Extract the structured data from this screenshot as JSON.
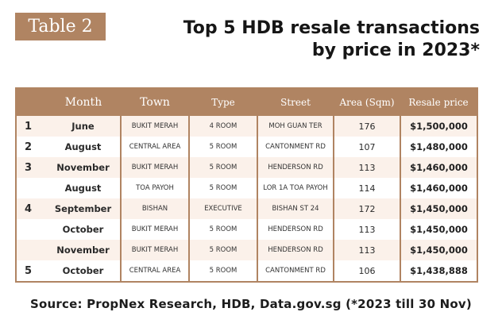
{
  "tag": "Table 2",
  "title": {
    "line1": "Top 5 HDB resale transactions",
    "line2": "by price in 2023*"
  },
  "columns": [
    "Month",
    "Town",
    "Type",
    "Street",
    "Area (Sqm)",
    "Resale price"
  ],
  "rows": [
    {
      "rank": "1",
      "month": "June",
      "town": "BUKIT MERAH",
      "type": "4 ROOM",
      "street": "MOH GUAN TER",
      "area": "176",
      "price": "$1,500,000"
    },
    {
      "rank": "2",
      "month": "August",
      "town": "CENTRAL AREA",
      "type": "5 ROOM",
      "street": "CANTONMENT RD",
      "area": "107",
      "price": "$1,480,000"
    },
    {
      "rank": "3",
      "month": "November",
      "town": "BUKIT MERAH",
      "type": "5 ROOM",
      "street": "HENDERSON RD",
      "area": "113",
      "price": "$1,460,000"
    },
    {
      "rank": "",
      "month": "August",
      "town": "TOA PAYOH",
      "type": "5 ROOM",
      "street": "LOR 1A TOA PAYOH",
      "area": "114",
      "price": "$1,460,000"
    },
    {
      "rank": "4",
      "month": "September",
      "town": "BISHAN",
      "type": "EXECUTIVE",
      "street": "BISHAN ST 24",
      "area": "172",
      "price": "$1,450,000"
    },
    {
      "rank": "",
      "month": "October",
      "town": "BUKIT MERAH",
      "type": "5 ROOM",
      "street": "HENDERSON RD",
      "area": "113",
      "price": "$1,450,000"
    },
    {
      "rank": "",
      "month": "November",
      "town": "BUKIT MERAH",
      "type": "5 ROOM",
      "street": "HENDERSON RD",
      "area": "113",
      "price": "$1,450,000"
    },
    {
      "rank": "5",
      "month": "October",
      "town": "CENTRAL AREA",
      "type": "5 ROOM",
      "street": "CANTONMENT RD",
      "area": "106",
      "price": "$1,438,888"
    }
  ],
  "source": "Source: PropNex Research, HDB, Data.gov.sg (*2023 till 30 Nov)",
  "colors": {
    "accent": "#b08462",
    "row_shade": "#fbf1ea"
  }
}
